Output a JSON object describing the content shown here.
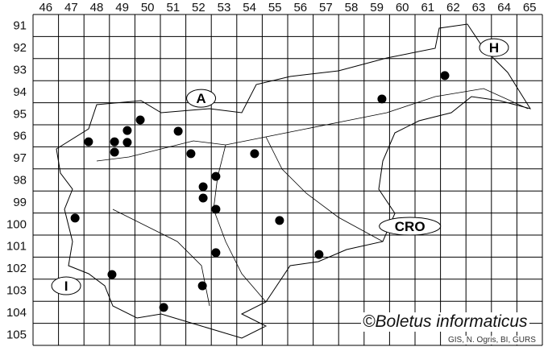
{
  "map": {
    "column_labels": [
      "46",
      "47",
      "48",
      "49",
      "50",
      "51",
      "52",
      "53",
      "54",
      "55",
      "56",
      "57",
      "58",
      "59",
      "60",
      "61",
      "62",
      "63",
      "64",
      "65"
    ],
    "row_labels": [
      "91",
      "92",
      "93",
      "94",
      "95",
      "96",
      "97",
      "98",
      "99",
      "100",
      "101",
      "102",
      "103",
      "104",
      "105"
    ],
    "country_labels": [
      {
        "text": "A",
        "col": 52.6,
        "row": 94.8
      },
      {
        "text": "H",
        "col": 64.1,
        "row": 92.5
      },
      {
        "text": "CRO",
        "col": 60.8,
        "row": 100.6
      },
      {
        "text": "I",
        "col": 47.3,
        "row": 103.3
      }
    ],
    "records": [
      {
        "col": 48.18,
        "row": 96.77
      },
      {
        "col": 49.2,
        "row": 96.77
      },
      {
        "col": 49.7,
        "row": 96.8
      },
      {
        "col": 49.7,
        "row": 96.26
      },
      {
        "col": 50.21,
        "row": 95.78
      },
      {
        "col": 51.7,
        "row": 96.29
      },
      {
        "col": 52.2,
        "row": 97.31
      },
      {
        "col": 49.2,
        "row": 97.24
      },
      {
        "col": 54.7,
        "row": 97.31
      },
      {
        "col": 53.18,
        "row": 98.34
      },
      {
        "col": 52.68,
        "row": 98.81
      },
      {
        "col": 52.68,
        "row": 99.32
      },
      {
        "col": 53.18,
        "row": 99.83
      },
      {
        "col": 47.65,
        "row": 100.23
      },
      {
        "col": 55.68,
        "row": 100.34
      },
      {
        "col": 53.18,
        "row": 101.8
      },
      {
        "col": 57.23,
        "row": 101.88
      },
      {
        "col": 49.1,
        "row": 102.79
      },
      {
        "col": 52.65,
        "row": 103.3
      },
      {
        "col": 51.13,
        "row": 104.28
      },
      {
        "col": 59.7,
        "row": 94.83
      },
      {
        "col": 62.17,
        "row": 93.77
      }
    ],
    "copyright": "©Boletus informaticus",
    "source": "GIS, N. Ogris, BI, GURS"
  }
}
